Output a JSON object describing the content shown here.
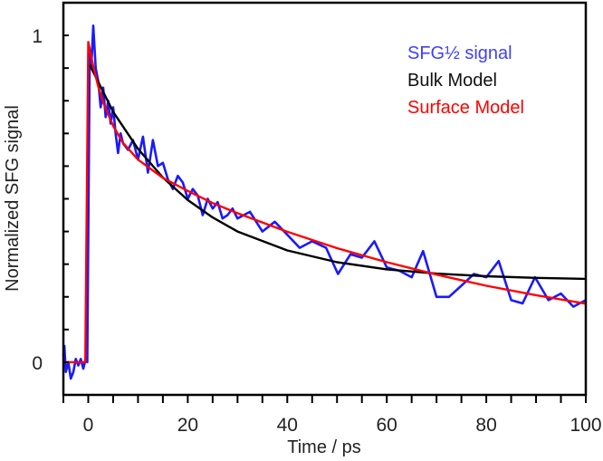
{
  "chart_data": {
    "type": "line",
    "title": "",
    "xlabel": "Time / ps",
    "ylabel": "Normalized SFG signal",
    "xlim": [
      -5,
      100
    ],
    "ylim": [
      -0.1,
      1.1
    ],
    "xticks": [
      0,
      20,
      40,
      60,
      80,
      100
    ],
    "xtick_labels": [
      "0",
      "20",
      "40",
      "60",
      "80",
      "100"
    ],
    "x_minor_step": 5,
    "yticks": [
      0,
      1
    ],
    "ytick_labels": [
      "0",
      "1"
    ],
    "y_minor_step": 0.1,
    "grid": false,
    "legend_placement": "top-right",
    "series": [
      {
        "name": "SFG½ signal",
        "color": "#1a1aff",
        "x": [
          -5,
          -4.8,
          -4.5,
          -4,
          -3.5,
          -3,
          -2.5,
          -2,
          -1.5,
          -1,
          -0.5,
          -0.2,
          0.3,
          0.6,
          1,
          1.5,
          2,
          2.5,
          3,
          3.5,
          4,
          4.5,
          5,
          5.5,
          6,
          6.5,
          7,
          8,
          9,
          10,
          11,
          12,
          13,
          14,
          15,
          16,
          17,
          18,
          19,
          20,
          21,
          22,
          23,
          24,
          25,
          26,
          27,
          28,
          29,
          30,
          32.5,
          35,
          37.5,
          40,
          42.5,
          45,
          47.8,
          50.2,
          52.7,
          55,
          57.5,
          60,
          62.5,
          65,
          67.3,
          70,
          72.5,
          74.7,
          77.5,
          80,
          82.5,
          85,
          87.3,
          89.8,
          92.5,
          95,
          97.5,
          100
        ],
        "y": [
          0.02,
          0.05,
          -0.03,
          0.0,
          -0.05,
          -0.03,
          0.01,
          -0.01,
          0.01,
          -0.02,
          0.01,
          0.0,
          0.95,
          0.9,
          1.03,
          0.9,
          0.86,
          0.78,
          0.84,
          0.75,
          0.8,
          0.73,
          0.78,
          0.7,
          0.64,
          0.7,
          0.67,
          0.65,
          0.68,
          0.62,
          0.69,
          0.58,
          0.68,
          0.6,
          0.61,
          0.56,
          0.53,
          0.57,
          0.55,
          0.5,
          0.53,
          0.51,
          0.45,
          0.5,
          0.47,
          0.49,
          0.44,
          0.45,
          0.47,
          0.44,
          0.46,
          0.4,
          0.43,
          0.39,
          0.35,
          0.37,
          0.35,
          0.27,
          0.33,
          0.32,
          0.37,
          0.29,
          0.28,
          0.26,
          0.34,
          0.2,
          0.2,
          0.23,
          0.27,
          0.26,
          0.31,
          0.19,
          0.18,
          0.26,
          0.19,
          0.21,
          0.17,
          0.19
        ]
      },
      {
        "name": "Bulk Model",
        "color": "#000000",
        "x": [
          0.3,
          5,
          10,
          15,
          20,
          25,
          30,
          40,
          50,
          60,
          70,
          80,
          90,
          100
        ],
        "y": [
          0.91,
          0.766,
          0.653,
          0.565,
          0.496,
          0.443,
          0.4,
          0.342,
          0.306,
          0.284,
          0.271,
          0.263,
          0.258,
          0.255
        ]
      },
      {
        "name": "Surface Model",
        "color": "#ff0000",
        "x": [
          -5,
          -0.6,
          0,
          1,
          2,
          3,
          5,
          7,
          10,
          15,
          20,
          25,
          30,
          40,
          50,
          60,
          70,
          80,
          90,
          100
        ],
        "y": [
          0,
          0,
          0.98,
          0.905,
          0.844,
          0.795,
          0.723,
          0.671,
          0.62,
          0.564,
          0.524,
          0.487,
          0.456,
          0.399,
          0.349,
          0.306,
          0.268,
          0.234,
          0.205,
          0.179
        ]
      }
    ]
  }
}
